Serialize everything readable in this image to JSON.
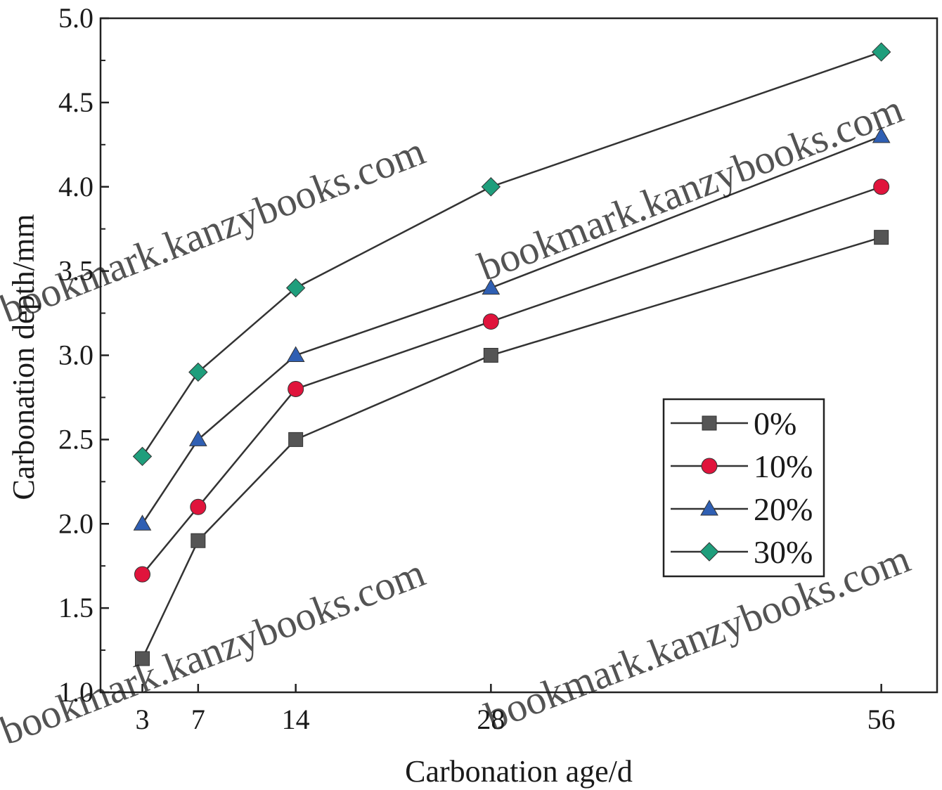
{
  "chart_data": {
    "type": "line",
    "xlabel": "Carbonation age/d",
    "ylabel": "Carbonation depth/mm",
    "x": [
      3,
      7,
      14,
      28,
      56
    ],
    "x_ticks": [
      3,
      7,
      14,
      28,
      56
    ],
    "x_tick_labels": [
      "3",
      "7",
      "14",
      "28",
      "56"
    ],
    "y_ticks": [
      1.0,
      1.5,
      2.0,
      2.5,
      3.0,
      3.5,
      4.0,
      4.5,
      5.0
    ],
    "y_tick_labels": [
      "1.0",
      "1.5",
      "2.0",
      "2.5",
      "3.0",
      "3.5",
      "4.0",
      "4.5",
      "5.0"
    ],
    "ylim": [
      1.0,
      5.0
    ],
    "grid": false,
    "legend_position": "center-right",
    "series": [
      {
        "name": "0%",
        "values": [
          1.2,
          1.9,
          2.5,
          3.0,
          3.7
        ],
        "marker": "square",
        "color": "#555555"
      },
      {
        "name": "10%",
        "values": [
          1.7,
          2.1,
          2.8,
          3.2,
          4.0
        ],
        "marker": "circle",
        "color": "#e0143c"
      },
      {
        "name": "20%",
        "values": [
          2.0,
          2.5,
          3.0,
          3.4,
          4.3
        ],
        "marker": "triangle",
        "color": "#2f5fb3"
      },
      {
        "name": "30%",
        "values": [
          2.4,
          2.9,
          3.4,
          4.0,
          4.8
        ],
        "marker": "diamond",
        "color": "#1f9e7c"
      }
    ],
    "line_color": "#333333"
  },
  "watermarks": [
    "bookmark.kanzybooks.com",
    "bookmark.kanzybooks.com",
    "bookmark.kanzybooks.com",
    "bookmark.kanzybooks.com"
  ]
}
